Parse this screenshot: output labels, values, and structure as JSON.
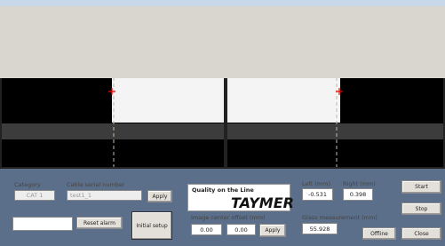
{
  "panel": {
    "category_label": "Category",
    "category_value": "CAT 1",
    "serial_label": "Cable serial number",
    "serial_value": "test1_1",
    "serial_apply": "Apply",
    "reset_alarm": "Reset alarm",
    "initial_setup": "Initial setup",
    "logo_tagline": "Quality on the Line",
    "logo_name": "TAYMER",
    "offset_label": "Image center offset (mm)",
    "offset_x": "0.00",
    "offset_y": "0.00",
    "offset_apply": "Apply",
    "left_label": "Left (mm)",
    "left_value": "-0.531",
    "right_label": "Right (mm)",
    "right_value": "0.398",
    "glass_label": "Glass measurement (mm)",
    "glass_value": "55.928",
    "start": "Start",
    "stop": "Stop",
    "offline": "Offline",
    "close": "Close"
  }
}
